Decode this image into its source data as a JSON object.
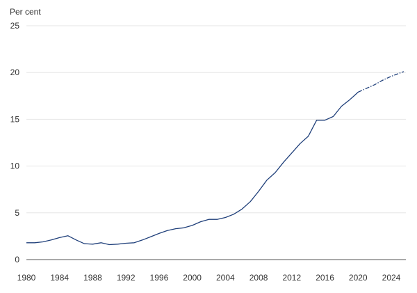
{
  "chart_data": {
    "type": "line",
    "title": "",
    "xlabel": "",
    "ylabel": "Per cent",
    "xlim": [
      1980,
      2025.5
    ],
    "ylim": [
      0,
      25
    ],
    "x_ticks": [
      1980,
      1984,
      1988,
      1992,
      1996,
      2000,
      2004,
      2008,
      2012,
      2016,
      2020,
      2024
    ],
    "y_ticks": [
      0,
      5,
      10,
      15,
      20,
      25
    ],
    "grid": true,
    "legend": "none",
    "line_color": "#1f3f7a",
    "grid_color": "#e6e6e6",
    "series": [
      {
        "style": "solid",
        "x": [
          1980,
          1981,
          1982,
          1983,
          1984,
          1985,
          1986,
          1987,
          1988,
          1989,
          1990,
          1991,
          1992,
          1993,
          1994,
          1995,
          1996,
          1997,
          1998,
          1999,
          2000,
          2001,
          2002,
          2003,
          2004,
          2005,
          2006,
          2007,
          2008,
          2009,
          2010,
          2011,
          2012,
          2013,
          2014,
          2015,
          2016,
          2017,
          2018,
          2019,
          2020
        ],
        "values": [
          1.8,
          1.8,
          1.9,
          2.1,
          2.35,
          2.55,
          2.1,
          1.7,
          1.65,
          1.8,
          1.6,
          1.65,
          1.75,
          1.8,
          2.1,
          2.45,
          2.8,
          3.1,
          3.3,
          3.4,
          3.65,
          4.05,
          4.3,
          4.3,
          4.5,
          4.85,
          5.4,
          6.2,
          7.3,
          8.5,
          9.3,
          10.4,
          11.4,
          12.4,
          13.2,
          14.9,
          14.9,
          15.3,
          16.4,
          17.1,
          17.9
        ]
      },
      {
        "style": "dashed",
        "x": [
          2020,
          2021,
          2022,
          2023,
          2024,
          2025.5
        ],
        "values": [
          17.9,
          18.3,
          18.7,
          19.2,
          19.6,
          20.1
        ]
      }
    ]
  }
}
